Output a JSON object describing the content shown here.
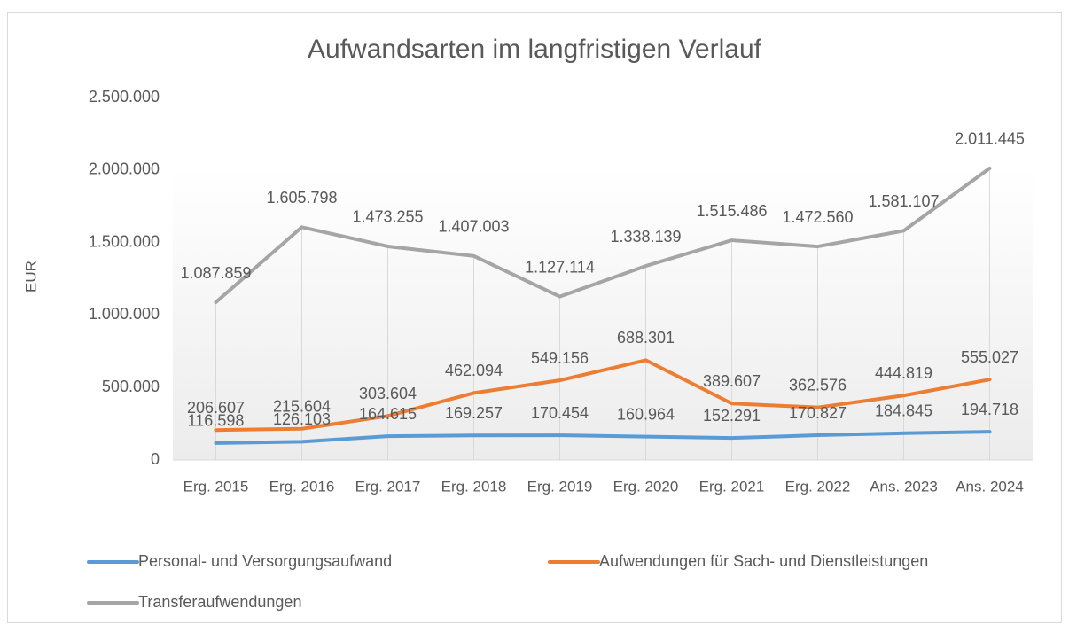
{
  "chart_data": {
    "type": "line",
    "title": "Aufwandsarten im langfristigen Verlauf",
    "y_label": "EUR",
    "categories": [
      "Erg. 2015",
      "Erg. 2016",
      "Erg. 2017",
      "Erg. 2018",
      "Erg. 2019",
      "Erg. 2020",
      "Erg. 2021",
      "Erg. 2022",
      "Ans. 2023",
      "Ans. 2024"
    ],
    "series": [
      {
        "name": "Personal- und Versorgungsaufwand",
        "color": "#5b9bd5",
        "values": [
          116598,
          126103,
          164615,
          169257,
          170454,
          160964,
          152291,
          170827,
          184845,
          194718
        ],
        "value_labels": [
          "116.598",
          "126.103",
          "164.615",
          "169.257",
          "170.454",
          "160.964",
          "152.291",
          "170.827",
          "184.845",
          "194.718"
        ]
      },
      {
        "name": "Aufwendungen für Sach- und Dienstleistungen",
        "color": "#ed7d31",
        "values": [
          206607,
          215604,
          303604,
          462094,
          549156,
          688301,
          389607,
          362576,
          444819,
          555027
        ],
        "value_labels": [
          "206.607",
          "215.604",
          "303.604",
          "462.094",
          "549.156",
          "688.301",
          "389.607",
          "362.576",
          "444.819",
          "555.027"
        ]
      },
      {
        "name": "Transferaufwendungen",
        "color": "#a5a5a5",
        "values": [
          1087859,
          1605798,
          1473255,
          1407003,
          1127114,
          1338139,
          1515486,
          1472560,
          1581107,
          2011445
        ],
        "value_labels": [
          "1.087.859",
          "1.605.798",
          "1.473.255",
          "1.407.003",
          "1.127.114",
          "1.338.139",
          "1.515.486",
          "1.472.560",
          "1.581.107",
          "2.011.445"
        ]
      }
    ],
    "ylim": [
      0,
      2500000
    ],
    "yticks": [
      0,
      {
        "value": 500000,
        "label": "500.000"
      },
      {
        "value": 1000000,
        "label": "1.000.000"
      },
      {
        "value": 1500000,
        "label": "1.500.000"
      },
      {
        "value": 2000000,
        "label": "2.000.000"
      },
      {
        "value": 2500000,
        "label": "2.500.000"
      }
    ],
    "legend": "bottom"
  }
}
